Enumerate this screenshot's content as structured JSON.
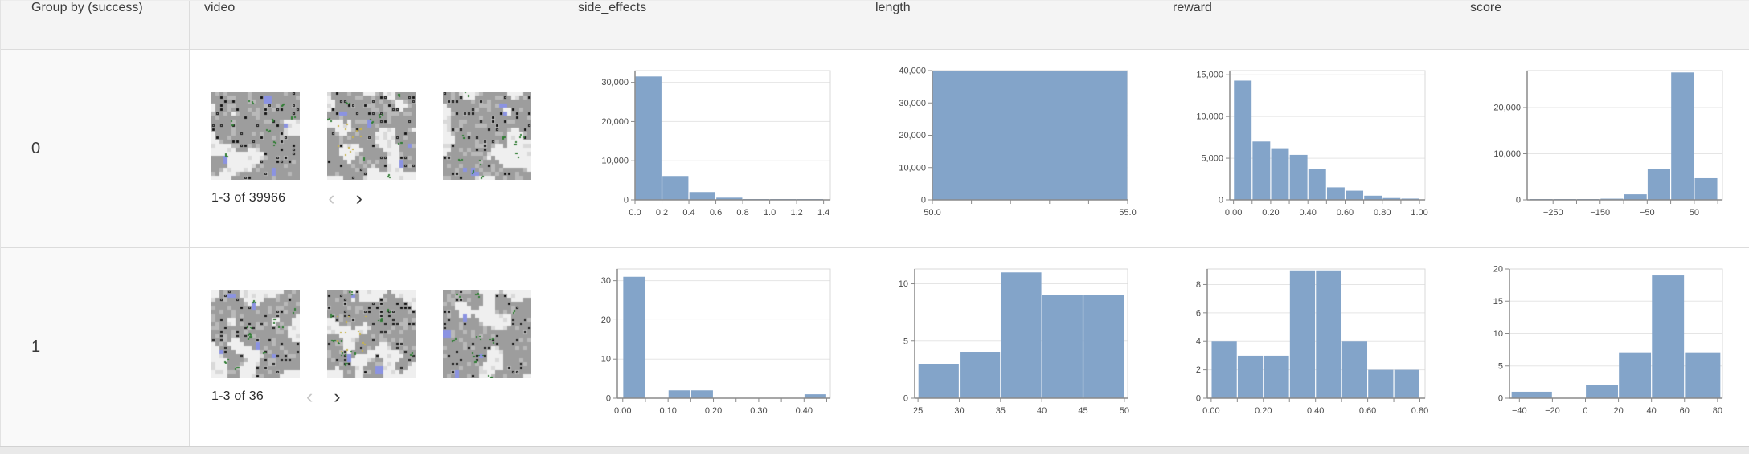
{
  "colors": {
    "bar_fill": "#83a4c9",
    "axis": "#8a8a8a",
    "grid": "#e5e5e5",
    "plot_border": "#d9d9d9",
    "tick_label": "#4a4a4a",
    "group_cell_bg": "#f9f9f9",
    "header_bg": "#f4f4f4"
  },
  "header": {
    "columns": [
      {
        "id": "group",
        "label": "Group by (success)"
      },
      {
        "id": "video",
        "label": "video"
      },
      {
        "id": "side_effects",
        "label": "side_effects"
      },
      {
        "id": "length",
        "label": "length"
      },
      {
        "id": "reward",
        "label": "reward"
      },
      {
        "id": "score",
        "label": "score"
      }
    ]
  },
  "rows": [
    {
      "group_value": "0",
      "video": {
        "pagination": "1-3 of 39966",
        "prev_icon": "‹",
        "next_icon": "›",
        "thumbnail_count": 3
      }
    },
    {
      "group_value": "1",
      "video": {
        "pagination": "1-3 of 36",
        "prev_icon": "‹",
        "next_icon": "›",
        "thumbnail_count": 3
      }
    }
  ],
  "chart_data": [
    {
      "type": "bar",
      "kind": "histogram",
      "row_group": "0",
      "column": "side_effects",
      "x_domain": [
        0,
        1.45
      ],
      "y_domain": [
        0,
        33000
      ],
      "x_ticks": [
        {
          "v": 0,
          "label": "0.0"
        },
        {
          "v": 0.2,
          "label": "0.2"
        },
        {
          "v": 0.4,
          "label": "0.4"
        },
        {
          "v": 0.6,
          "label": "0.6"
        },
        {
          "v": 0.8,
          "label": "0.8"
        },
        {
          "v": 1.0,
          "label": "1.0"
        },
        {
          "v": 1.2,
          "label": "1.2"
        },
        {
          "v": 1.4,
          "label": "1.4"
        }
      ],
      "y_ticks": [
        {
          "v": 0,
          "label": "0"
        },
        {
          "v": 10000,
          "label": "10,000"
        },
        {
          "v": 20000,
          "label": "20,000"
        },
        {
          "v": 30000,
          "label": "30,000"
        }
      ],
      "bins": [
        [
          0,
          0.2,
          31500
        ],
        [
          0.2,
          0.4,
          6100
        ],
        [
          0.4,
          0.6,
          2000
        ],
        [
          0.6,
          0.8,
          550
        ],
        [
          0.8,
          1.0,
          200
        ],
        [
          1.0,
          1.2,
          90
        ],
        [
          1.2,
          1.4,
          60
        ]
      ]
    },
    {
      "type": "bar",
      "kind": "histogram",
      "row_group": "0",
      "column": "length",
      "x_domain": [
        50,
        55
      ],
      "y_domain": [
        0,
        40000
      ],
      "x_ticks": [
        {
          "v": 50,
          "label": "50.0"
        },
        {
          "v": 51,
          "label": ""
        },
        {
          "v": 52,
          "label": ""
        },
        {
          "v": 53,
          "label": ""
        },
        {
          "v": 54,
          "label": ""
        },
        {
          "v": 55,
          "label": "55.0"
        }
      ],
      "y_ticks": [
        {
          "v": 0,
          "label": "0"
        },
        {
          "v": 10000,
          "label": "10,000"
        },
        {
          "v": 20000,
          "label": "20,000"
        },
        {
          "v": 30000,
          "label": "30,000"
        },
        {
          "v": 40000,
          "label": "40,000"
        }
      ],
      "bins": [
        [
          50,
          55,
          40000
        ]
      ]
    },
    {
      "type": "bar",
      "kind": "histogram",
      "row_group": "0",
      "column": "reward",
      "x_domain": [
        -0.02,
        1.03
      ],
      "y_domain": [
        0,
        15500
      ],
      "x_ticks": [
        {
          "v": 0,
          "label": "0.00"
        },
        {
          "v": 0.1,
          "label": ""
        },
        {
          "v": 0.2,
          "label": "0.20"
        },
        {
          "v": 0.3,
          "label": ""
        },
        {
          "v": 0.4,
          "label": "0.40"
        },
        {
          "v": 0.5,
          "label": ""
        },
        {
          "v": 0.6,
          "label": "0.60"
        },
        {
          "v": 0.7,
          "label": ""
        },
        {
          "v": 0.8,
          "label": "0.80"
        },
        {
          "v": 0.9,
          "label": ""
        },
        {
          "v": 1.0,
          "label": "1.00"
        }
      ],
      "y_ticks": [
        {
          "v": 0,
          "label": "0"
        },
        {
          "v": 5000,
          "label": "5,000"
        },
        {
          "v": 10000,
          "label": "10,000"
        },
        {
          "v": 15000,
          "label": "15,000"
        }
      ],
      "bins": [
        [
          0,
          0.1,
          14300
        ],
        [
          0.1,
          0.2,
          7000
        ],
        [
          0.2,
          0.3,
          6200
        ],
        [
          0.3,
          0.4,
          5400
        ],
        [
          0.4,
          0.5,
          3700
        ],
        [
          0.5,
          0.6,
          1500
        ],
        [
          0.6,
          0.7,
          1100
        ],
        [
          0.7,
          0.8,
          500
        ],
        [
          0.8,
          0.9,
          220
        ],
        [
          0.9,
          1.0,
          150
        ]
      ]
    },
    {
      "type": "bar",
      "kind": "histogram",
      "row_group": "0",
      "column": "score",
      "x_domain": [
        -305,
        110
      ],
      "y_domain": [
        0,
        28000
      ],
      "x_ticks": [
        {
          "v": -250,
          "label": "−250"
        },
        {
          "v": -200,
          "label": ""
        },
        {
          "v": -150,
          "label": "−150"
        },
        {
          "v": -100,
          "label": ""
        },
        {
          "v": -50,
          "label": "−50"
        },
        {
          "v": 0,
          "label": ""
        },
        {
          "v": 50,
          "label": "50"
        },
        {
          "v": 100,
          "label": ""
        }
      ],
      "y_ticks": [
        {
          "v": 0,
          "label": "0"
        },
        {
          "v": 10000,
          "label": "10,000"
        },
        {
          "v": 20000,
          "label": "20,000"
        }
      ],
      "bins": [
        [
          -300,
          -250,
          60
        ],
        [
          -250,
          -200,
          80
        ],
        [
          -200,
          -150,
          100
        ],
        [
          -150,
          -100,
          250
        ],
        [
          -100,
          -50,
          1200
        ],
        [
          -50,
          0,
          6700
        ],
        [
          0,
          50,
          27600
        ],
        [
          50,
          100,
          4700
        ]
      ]
    },
    {
      "type": "bar",
      "kind": "histogram",
      "row_group": "1",
      "column": "side_effects",
      "x_domain": [
        -0.012,
        0.458
      ],
      "y_domain": [
        0,
        33
      ],
      "x_ticks": [
        {
          "v": 0,
          "label": "0.00"
        },
        {
          "v": 0.05,
          "label": ""
        },
        {
          "v": 0.1,
          "label": "0.10"
        },
        {
          "v": 0.15,
          "label": ""
        },
        {
          "v": 0.2,
          "label": "0.20"
        },
        {
          "v": 0.25,
          "label": ""
        },
        {
          "v": 0.3,
          "label": "0.30"
        },
        {
          "v": 0.35,
          "label": ""
        },
        {
          "v": 0.4,
          "label": "0.40"
        },
        {
          "v": 0.45,
          "label": ""
        }
      ],
      "y_ticks": [
        {
          "v": 0,
          "label": "0"
        },
        {
          "v": 10,
          "label": "10"
        },
        {
          "v": 20,
          "label": "20"
        },
        {
          "v": 30,
          "label": "30"
        }
      ],
      "bins": [
        [
          0,
          0.05,
          31
        ],
        [
          0.1,
          0.15,
          2
        ],
        [
          0.15,
          0.2,
          2
        ],
        [
          0.4,
          0.45,
          1
        ]
      ]
    },
    {
      "type": "bar",
      "kind": "histogram",
      "row_group": "1",
      "column": "length",
      "x_domain": [
        24.6,
        50.4
      ],
      "y_domain": [
        0,
        11.3
      ],
      "x_ticks": [
        {
          "v": 25,
          "label": "25"
        },
        {
          "v": 30,
          "label": "30"
        },
        {
          "v": 35,
          "label": "35"
        },
        {
          "v": 40,
          "label": "40"
        },
        {
          "v": 45,
          "label": "45"
        },
        {
          "v": 50,
          "label": "50"
        }
      ],
      "y_ticks": [
        {
          "v": 0,
          "label": "0"
        },
        {
          "v": 5,
          "label": "5"
        },
        {
          "v": 10,
          "label": "10"
        }
      ],
      "bins": [
        [
          25,
          30,
          3
        ],
        [
          30,
          35,
          4
        ],
        [
          35,
          40,
          11
        ],
        [
          40,
          45,
          9
        ],
        [
          45,
          50,
          9
        ]
      ]
    },
    {
      "type": "bar",
      "kind": "histogram",
      "row_group": "1",
      "column": "reward",
      "x_domain": [
        -0.015,
        0.82
      ],
      "y_domain": [
        0,
        9.1
      ],
      "x_ticks": [
        {
          "v": 0,
          "label": "0.00"
        },
        {
          "v": 0.1,
          "label": ""
        },
        {
          "v": 0.2,
          "label": "0.20"
        },
        {
          "v": 0.3,
          "label": ""
        },
        {
          "v": 0.4,
          "label": "0.40"
        },
        {
          "v": 0.5,
          "label": ""
        },
        {
          "v": 0.6,
          "label": "0.60"
        },
        {
          "v": 0.7,
          "label": ""
        },
        {
          "v": 0.8,
          "label": "0.80"
        }
      ],
      "y_ticks": [
        {
          "v": 0,
          "label": "0"
        },
        {
          "v": 2,
          "label": "2"
        },
        {
          "v": 4,
          "label": "4"
        },
        {
          "v": 6,
          "label": "6"
        },
        {
          "v": 8,
          "label": "8"
        }
      ],
      "bins": [
        [
          0,
          0.1,
          4
        ],
        [
          0.1,
          0.2,
          3
        ],
        [
          0.2,
          0.3,
          3
        ],
        [
          0.3,
          0.4,
          9
        ],
        [
          0.4,
          0.5,
          9
        ],
        [
          0.5,
          0.6,
          4
        ],
        [
          0.6,
          0.7,
          2
        ],
        [
          0.7,
          0.8,
          2
        ]
      ]
    },
    {
      "type": "bar",
      "kind": "histogram",
      "row_group": "1",
      "column": "score",
      "x_domain": [
        -46,
        83
      ],
      "y_domain": [
        0,
        20
      ],
      "x_ticks": [
        {
          "v": -40,
          "label": "−40"
        },
        {
          "v": -20,
          "label": "−20"
        },
        {
          "v": 0,
          "label": "0"
        },
        {
          "v": 20,
          "label": "20"
        },
        {
          "v": 40,
          "label": "40"
        },
        {
          "v": 60,
          "label": "60"
        },
        {
          "v": 80,
          "label": "80"
        }
      ],
      "y_ticks": [
        {
          "v": 0,
          "label": "0"
        },
        {
          "v": 5,
          "label": "5"
        },
        {
          "v": 10,
          "label": "10"
        },
        {
          "v": 15,
          "label": "15"
        },
        {
          "v": 20,
          "label": "20"
        }
      ],
      "bins": [
        [
          -45,
          -20,
          1
        ],
        [
          0,
          20,
          2
        ],
        [
          20,
          40,
          7
        ],
        [
          40,
          60,
          19
        ],
        [
          60,
          82,
          7
        ]
      ]
    }
  ]
}
